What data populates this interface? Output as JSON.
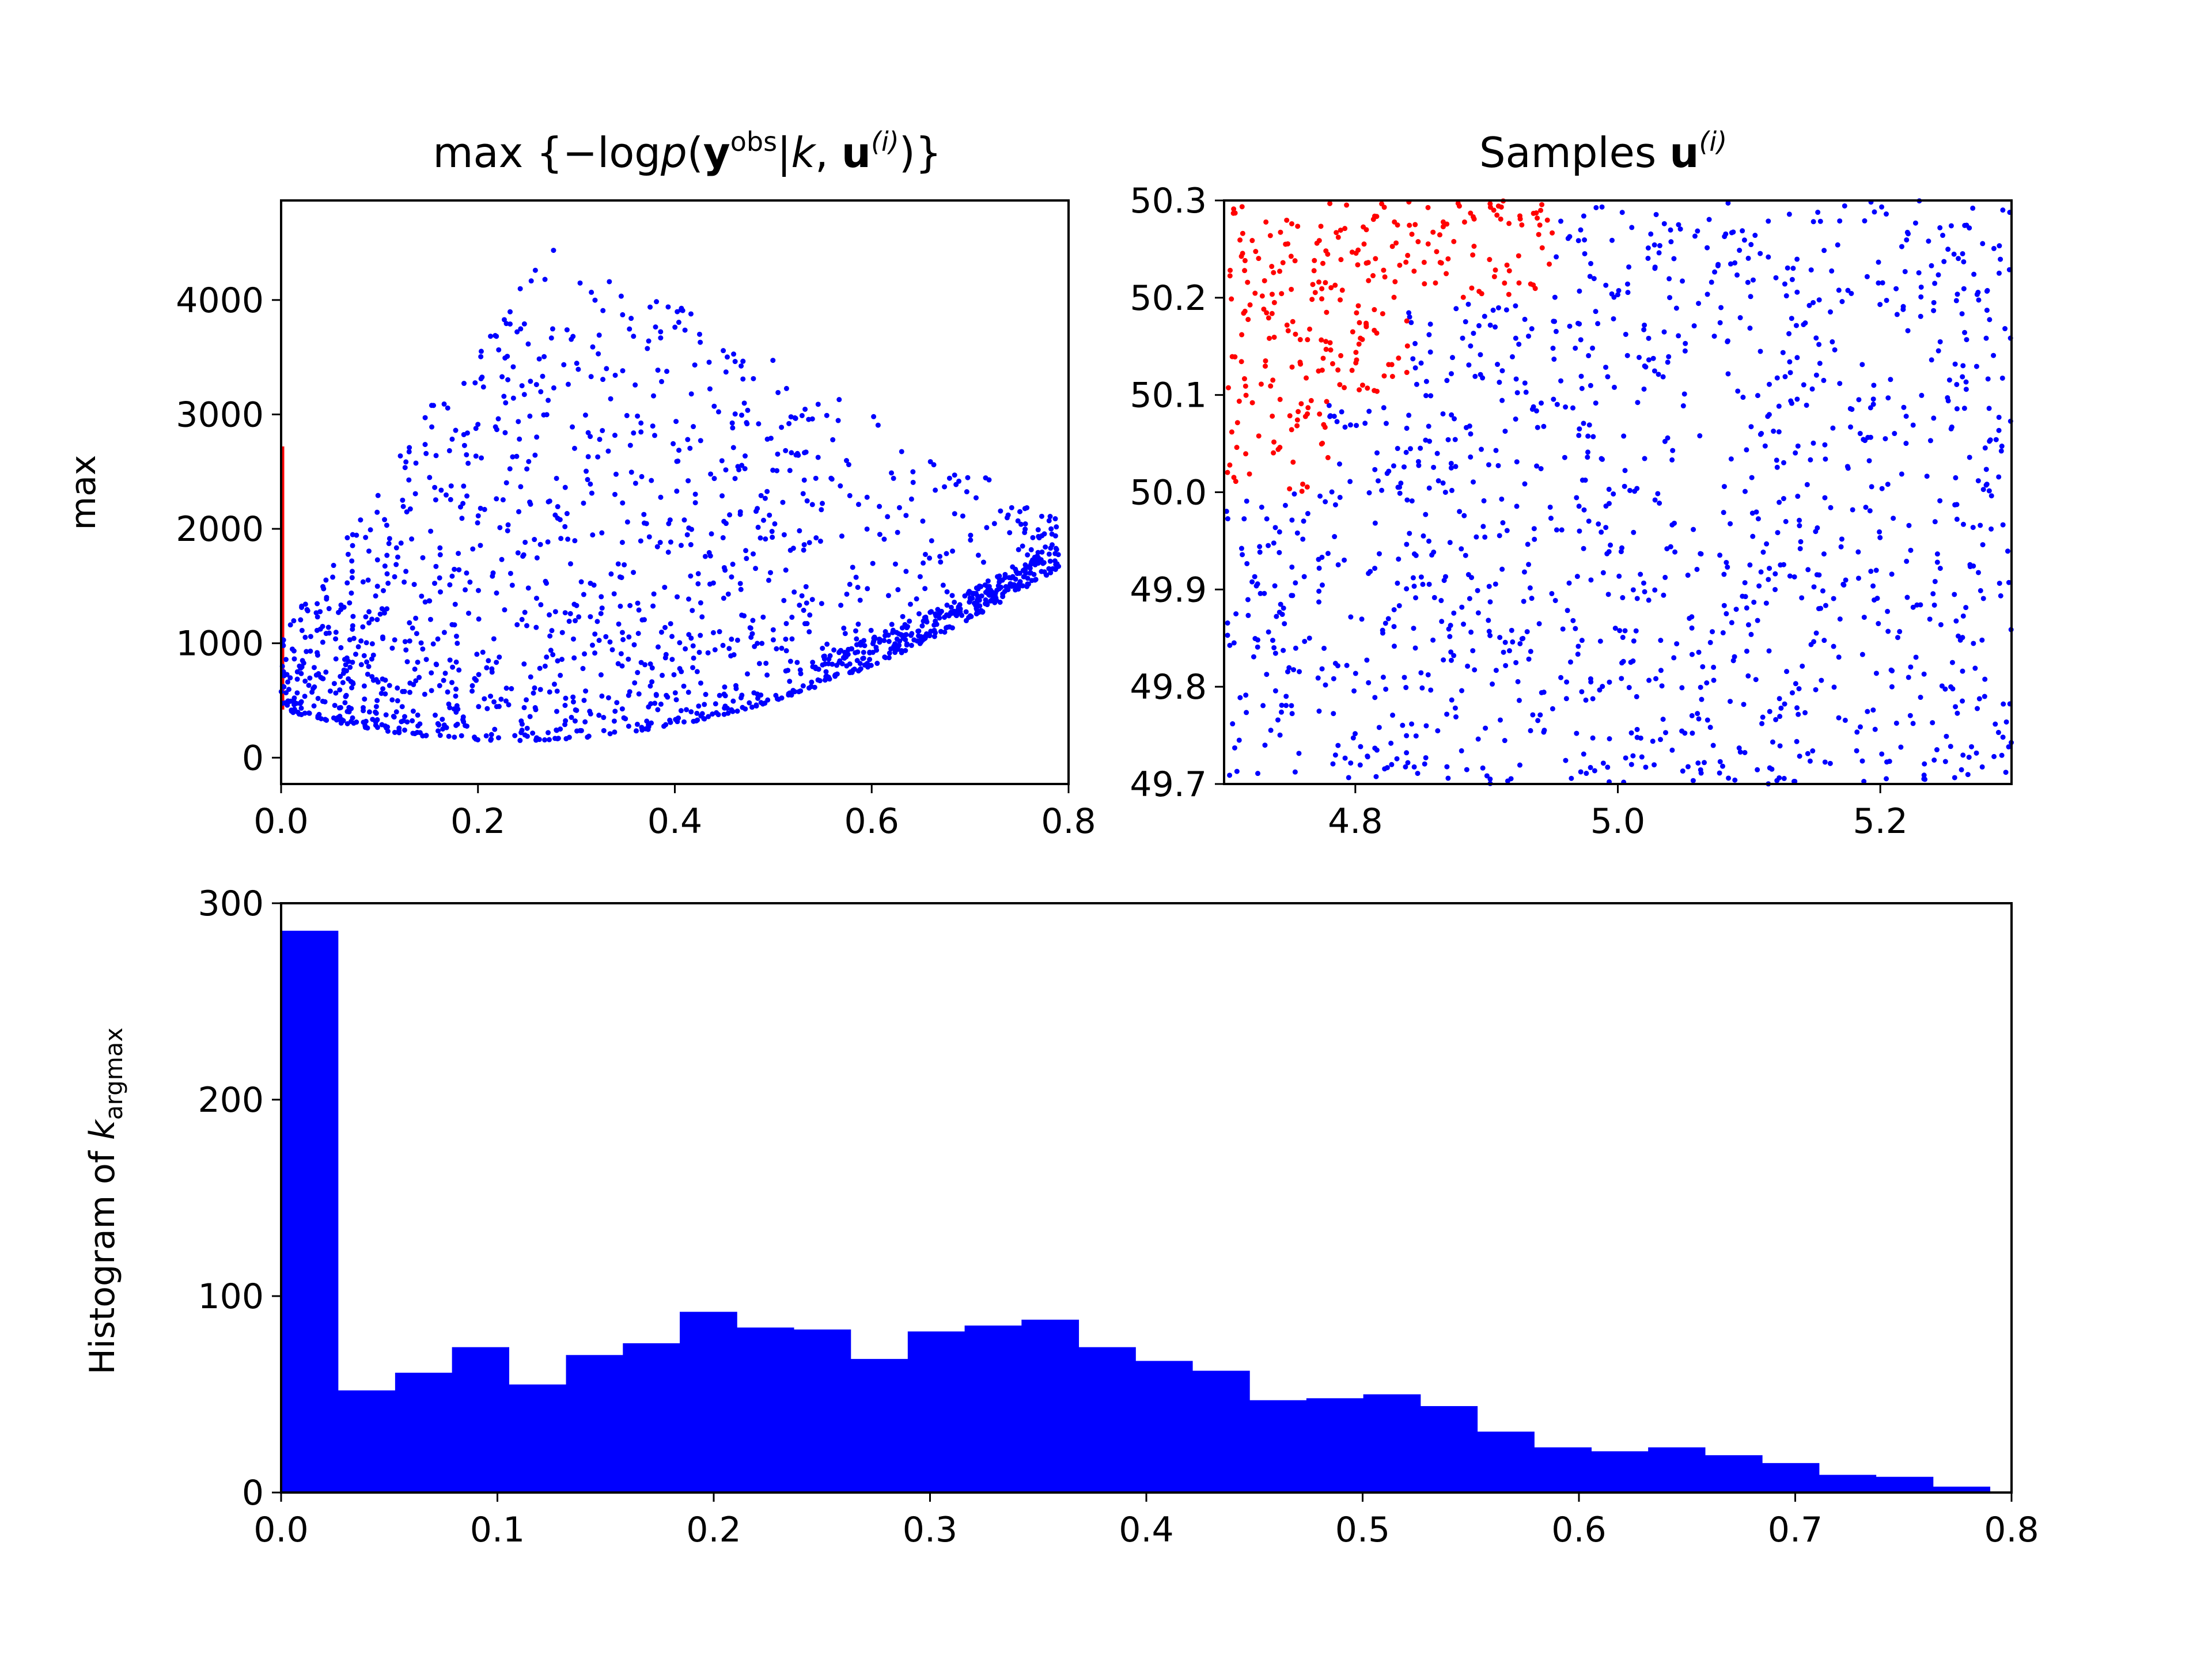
{
  "colors": {
    "primary": "#0000ff",
    "highlight": "#ff0000"
  },
  "chart_data": [
    {
      "type": "scatter",
      "title": "max {−log p(yobs|k, u(i))}",
      "title_parts": {
        "prefix": "max {−log",
        "p": "p",
        "paren_open": "(",
        "y": "y",
        "obs": "obs",
        "bar": "|",
        "k": "k",
        "comma": ", ",
        "u": "u",
        "sup_i": "(i)",
        "close": ")}"
      },
      "xlabel": "",
      "ylabel": "max",
      "xlim": [
        0.0,
        0.8
      ],
      "ylim": [
        -230,
        4870
      ],
      "xticks": [
        "0.0",
        "0.2",
        "0.4",
        "0.6",
        "0.8"
      ],
      "yticks": [
        "0",
        "1000",
        "2000",
        "3000",
        "4000"
      ],
      "series": [
        {
          "color": "#0000ff",
          "n_points": 1650,
          "x_range": [
            0.0,
            0.79
          ],
          "y_range": [
            0,
            4680
          ],
          "shape": "U-shaped lower envelope with minimum near k=0.28; upper spread peaks near k=0.27 (~4600); right edge rises to ~2500 at k=0.79"
        },
        {
          "color": "#ff0000",
          "x": 0.0,
          "y_range": [
            420,
            2720
          ]
        }
      ]
    },
    {
      "type": "scatter",
      "title": "Samples u(i)",
      "title_parts": {
        "prefix": "Samples ",
        "u": "u",
        "sup_i": "(i)"
      },
      "xlim": [
        4.7,
        5.3
      ],
      "ylim": [
        49.7,
        50.3
      ],
      "xticks": [
        "4.8",
        "5.0",
        "5.2"
      ],
      "yticks": [
        "49.7",
        "49.8",
        "49.9",
        "50.0",
        "50.1",
        "50.2",
        "50.3"
      ],
      "series": [
        {
          "color": "#0000ff",
          "n_points": 1400,
          "region": "uniform over the whole domain"
        },
        {
          "color": "#ff0000",
          "n_points": 280,
          "region": "upper-left corner: x 4.70–4.95, y 50.0–50.3"
        }
      ]
    },
    {
      "type": "bar",
      "subtype": "histogram",
      "xlabel": "",
      "ylabel": "Histogram of k_argmax",
      "ylabel_parts": {
        "prefix": "Histogram of ",
        "k": "k",
        "sub": "argmax"
      },
      "xlim": [
        0.0,
        0.8
      ],
      "ylim": [
        0,
        300
      ],
      "xticks": [
        "0.0",
        "0.1",
        "0.2",
        "0.3",
        "0.4",
        "0.5",
        "0.6",
        "0.7",
        "0.8"
      ],
      "yticks": [
        "0",
        "100",
        "200",
        "300"
      ],
      "bin_edges": [
        0.0,
        0.0263,
        0.0527,
        0.079,
        0.1053,
        0.1317,
        0.158,
        0.1843,
        0.2107,
        0.237,
        0.2633,
        0.2897,
        0.316,
        0.3423,
        0.3687,
        0.395,
        0.4213,
        0.4477,
        0.474,
        0.5003,
        0.5267,
        0.553,
        0.5793,
        0.6057,
        0.632,
        0.6583,
        0.6847,
        0.711,
        0.7373,
        0.7637,
        0.79
      ],
      "values": [
        286,
        52,
        61,
        74,
        55,
        70,
        76,
        92,
        84,
        83,
        68,
        82,
        85,
        88,
        74,
        67,
        62,
        47,
        48,
        50,
        44,
        31,
        23,
        21,
        23,
        19,
        15,
        9,
        8,
        3
      ],
      "color": "#0000ff"
    }
  ]
}
